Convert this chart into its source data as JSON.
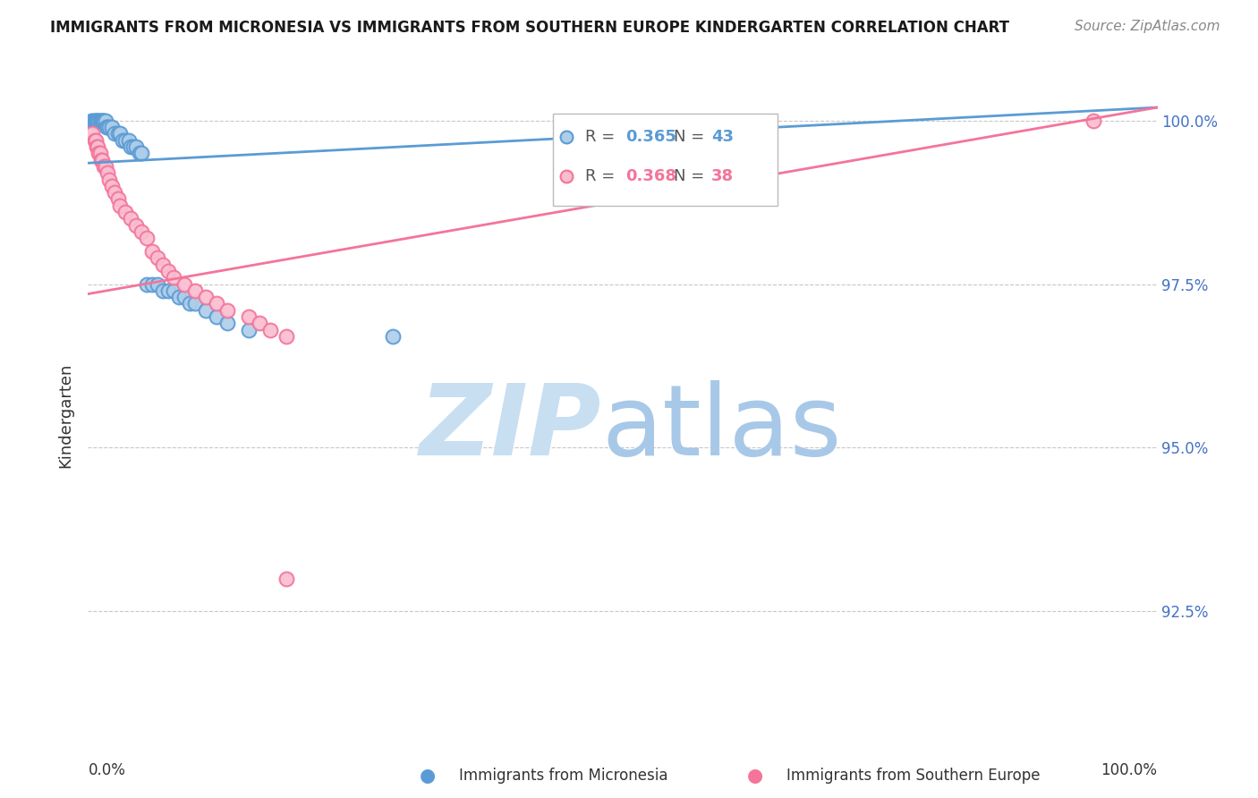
{
  "title": "IMMIGRANTS FROM MICRONESIA VS IMMIGRANTS FROM SOUTHERN EUROPE KINDERGARTEN CORRELATION CHART",
  "source": "Source: ZipAtlas.com",
  "ylabel": "Kindergarten",
  "xlim": [
    0.0,
    1.0
  ],
  "ylim": [
    0.905,
    1.005
  ],
  "yticks": [
    0.925,
    0.95,
    0.975,
    1.0
  ],
  "ytick_labels": [
    "92.5%",
    "95.0%",
    "97.5%",
    "100.0%"
  ],
  "blue_color": "#5b9bd5",
  "pink_color": "#f4749a",
  "blue_marker_fill": "#aecde8",
  "pink_marker_fill": "#f9bdd0",
  "grid_color": "#c8c8c8",
  "background_color": "#ffffff",
  "title_color": "#1a1a1a",
  "source_color": "#888888",
  "axis_label_color": "#4472c4",
  "watermark_zip_color": "#c8dff2",
  "watermark_atlas_color": "#a8c8e8",
  "blue_R": "0.365",
  "blue_N": "43",
  "pink_R": "0.368",
  "pink_N": "38",
  "blue_line_y0": 0.9935,
  "blue_line_y1": 1.002,
  "pink_line_y0": 0.9735,
  "pink_line_y1": 1.002,
  "blue_x": [
    0.003,
    0.005,
    0.006,
    0.007,
    0.008,
    0.009,
    0.01,
    0.011,
    0.012,
    0.013,
    0.014,
    0.015,
    0.016,
    0.017,
    0.018,
    0.02,
    0.022,
    0.025,
    0.028,
    0.03,
    0.032,
    0.035,
    0.038,
    0.04,
    0.042,
    0.045,
    0.048,
    0.05,
    0.055,
    0.06,
    0.065,
    0.07,
    0.075,
    0.08,
    0.085,
    0.09,
    0.095,
    0.1,
    0.11,
    0.12,
    0.13,
    0.15,
    0.285
  ],
  "blue_y": [
    1.0,
    1.0,
    1.0,
    1.0,
    1.0,
    1.0,
    1.0,
    1.0,
    1.0,
    1.0,
    1.0,
    1.0,
    1.0,
    0.999,
    0.999,
    0.999,
    0.999,
    0.998,
    0.998,
    0.998,
    0.997,
    0.997,
    0.997,
    0.996,
    0.996,
    0.996,
    0.995,
    0.995,
    0.975,
    0.975,
    0.975,
    0.974,
    0.974,
    0.974,
    0.973,
    0.973,
    0.972,
    0.972,
    0.971,
    0.97,
    0.969,
    0.968,
    0.967
  ],
  "pink_x": [
    0.004,
    0.006,
    0.007,
    0.008,
    0.009,
    0.01,
    0.011,
    0.012,
    0.013,
    0.015,
    0.016,
    0.018,
    0.02,
    0.022,
    0.025,
    0.028,
    0.03,
    0.035,
    0.04,
    0.045,
    0.05,
    0.055,
    0.06,
    0.065,
    0.07,
    0.075,
    0.08,
    0.09,
    0.1,
    0.11,
    0.12,
    0.13,
    0.15,
    0.16,
    0.17,
    0.185,
    0.94,
    0.185
  ],
  "pink_y": [
    0.998,
    0.997,
    0.997,
    0.996,
    0.996,
    0.995,
    0.995,
    0.994,
    0.994,
    0.993,
    0.993,
    0.992,
    0.991,
    0.99,
    0.989,
    0.988,
    0.987,
    0.986,
    0.985,
    0.984,
    0.983,
    0.982,
    0.98,
    0.979,
    0.978,
    0.977,
    0.976,
    0.975,
    0.974,
    0.973,
    0.972,
    0.971,
    0.97,
    0.969,
    0.968,
    0.967,
    1.0,
    0.93
  ]
}
